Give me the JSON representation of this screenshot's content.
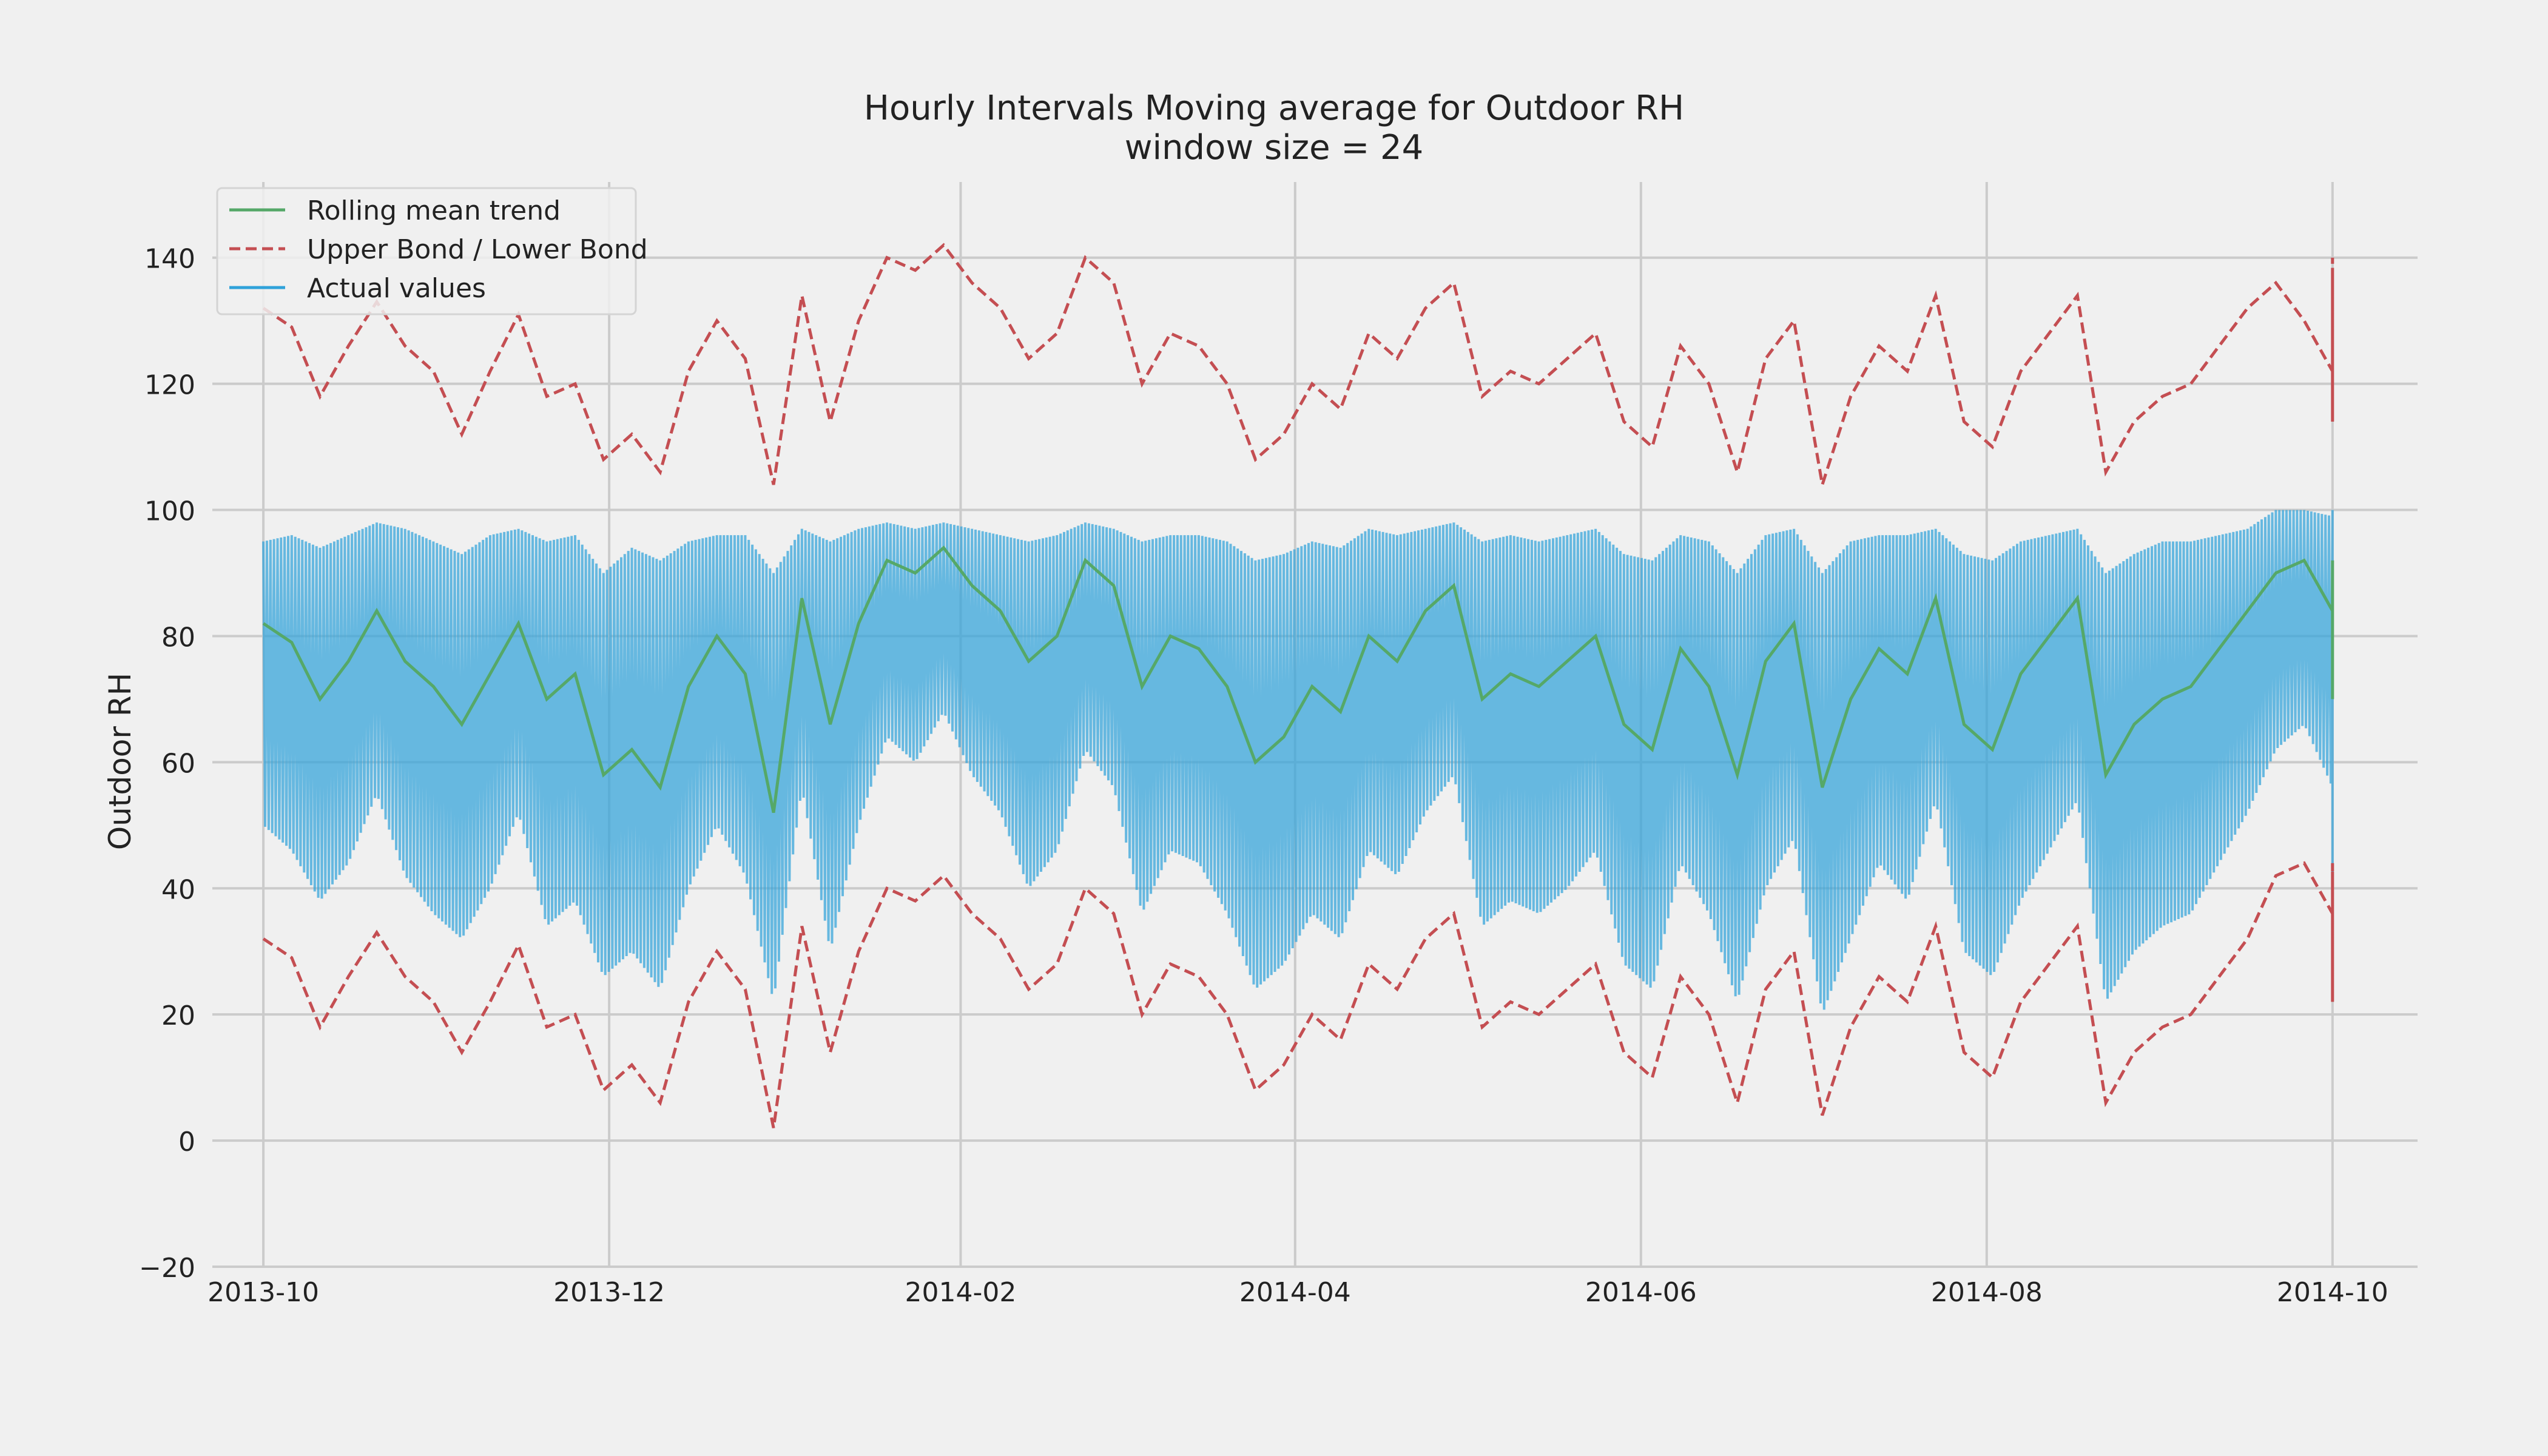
{
  "chart_data": {
    "type": "line",
    "title": "Hourly Intervals Moving average for Outdoor RH",
    "subtitle": "window size = 24",
    "ylabel": "Outdoor RH",
    "xlabel": "",
    "ylim": [
      -20,
      152
    ],
    "xlim": [
      "2013-09-22",
      "2014-10-16"
    ],
    "grid": true,
    "legend_position": "top-left",
    "x_ticks": [
      "2013-10",
      "2013-12",
      "2014-02",
      "2014-04",
      "2014-06",
      "2014-08",
      "2014-10"
    ],
    "y_ticks": [
      -20,
      0,
      20,
      40,
      60,
      80,
      100,
      120,
      140
    ],
    "x_start": "2013-10-01",
    "x_step_days": 5,
    "x_end": "2014-10-01",
    "series": [
      {
        "name": "Rolling mean trend",
        "color": "#55a868",
        "style": "solid",
        "values": [
          82,
          79,
          70,
          76,
          84,
          76,
          72,
          66,
          74,
          82,
          70,
          74,
          58,
          62,
          56,
          72,
          80,
          74,
          52,
          86,
          66,
          82,
          92,
          90,
          94,
          88,
          84,
          76,
          80,
          92,
          88,
          72,
          80,
          78,
          72,
          60,
          64,
          72,
          68,
          80,
          76,
          84,
          88,
          70,
          74,
          72,
          76,
          80,
          66,
          62,
          78,
          72,
          58,
          76,
          82,
          56,
          70,
          78,
          74,
          86,
          66,
          62,
          74,
          80,
          86,
          58,
          66,
          70,
          72,
          78,
          84,
          90,
          92,
          84,
          86,
          88,
          84,
          80,
          76,
          78,
          82,
          86,
          80,
          92,
          84,
          84,
          86,
          78,
          88,
          90,
          80,
          82,
          84,
          86,
          80,
          80,
          86,
          76,
          72,
          84,
          80,
          82,
          84,
          88,
          80,
          82,
          76,
          82,
          88,
          72,
          80,
          88,
          86,
          88,
          84,
          84,
          82,
          76,
          76,
          82,
          84,
          78,
          70,
          82,
          88,
          80,
          86,
          84,
          82,
          82,
          86,
          80,
          86,
          74,
          82,
          80,
          82,
          78,
          82,
          86,
          84,
          86,
          86,
          76,
          80,
          78,
          82,
          80,
          72,
          84,
          88,
          84,
          74
        ]
      },
      {
        "name": "Upper Bond / Lower Bond",
        "color": "#c44e52",
        "style": "dashed",
        "upper": [
          132,
          129,
          118,
          126,
          133,
          126,
          122,
          112,
          122,
          131,
          118,
          120,
          108,
          112,
          106,
          122,
          130,
          124,
          104,
          134,
          114,
          130,
          140,
          138,
          142,
          136,
          132,
          124,
          128,
          140,
          136,
          120,
          128,
          126,
          120,
          108,
          112,
          120,
          116,
          128,
          124,
          132,
          136,
          118,
          122,
          120,
          124,
          128,
          114,
          110,
          126,
          120,
          106,
          124,
          130,
          104,
          118,
          126,
          122,
          134,
          114,
          110,
          122,
          128,
          134,
          106,
          114,
          118,
          120,
          126,
          132,
          136,
          130,
          122,
          124,
          126,
          122,
          118,
          114,
          116,
          120,
          124,
          118,
          140,
          132,
          132,
          134,
          126,
          136,
          138,
          128,
          130,
          132,
          134,
          128,
          128,
          134,
          124,
          120,
          132,
          128,
          130,
          132,
          136,
          128,
          130,
          124,
          130,
          136,
          120,
          128,
          136,
          134,
          136,
          132,
          132,
          130,
          124,
          124,
          130,
          132,
          126,
          118,
          130,
          136,
          128,
          134,
          132,
          130,
          130,
          134,
          128,
          134,
          122,
          130,
          128,
          130,
          126,
          130,
          134,
          132,
          134,
          134,
          124,
          128,
          126,
          130,
          128,
          120,
          132,
          136,
          132,
          122
        ],
        "lower": [
          32,
          29,
          18,
          26,
          33,
          26,
          22,
          14,
          22,
          31,
          18,
          20,
          8,
          12,
          6,
          22,
          30,
          24,
          2,
          34,
          14,
          30,
          40,
          38,
          42,
          36,
          32,
          24,
          28,
          40,
          36,
          20,
          28,
          26,
          20,
          8,
          12,
          20,
          16,
          28,
          24,
          32,
          36,
          18,
          22,
          20,
          24,
          28,
          14,
          10,
          26,
          20,
          6,
          24,
          30,
          4,
          18,
          26,
          22,
          34,
          14,
          10,
          22,
          28,
          34,
          6,
          14,
          18,
          20,
          26,
          32,
          42,
          44,
          36,
          38,
          40,
          36,
          32,
          28,
          30,
          34,
          38,
          32,
          44,
          36,
          36,
          38,
          30,
          40,
          42,
          32,
          34,
          36,
          38,
          32,
          32,
          38,
          28,
          24,
          36,
          32,
          34,
          36,
          40,
          32,
          34,
          28,
          34,
          40,
          24,
          32,
          40,
          38,
          40,
          36,
          36,
          34,
          28,
          28,
          34,
          36,
          30,
          22,
          34,
          40,
          32,
          38,
          36,
          34,
          34,
          38,
          32,
          38,
          26,
          34,
          32,
          34,
          30,
          34,
          38,
          36,
          38,
          38,
          28,
          32,
          30,
          34,
          32,
          24,
          36,
          40,
          36,
          26
        ]
      },
      {
        "name": "Actual values",
        "color": "#30a2da",
        "style": "solid",
        "max": [
          95,
          96,
          94,
          96,
          98,
          97,
          95,
          93,
          96,
          97,
          95,
          96,
          90,
          94,
          92,
          95,
          96,
          96,
          90,
          97,
          95,
          97,
          98,
          97,
          98,
          97,
          96,
          95,
          96,
          98,
          97,
          95,
          96,
          96,
          95,
          92,
          93,
          95,
          94,
          97,
          96,
          97,
          98,
          95,
          96,
          95,
          96,
          97,
          93,
          92,
          96,
          95,
          90,
          96,
          97,
          90,
          95,
          96,
          96,
          97,
          93,
          92,
          95,
          96,
          97,
          90,
          93,
          95,
          95,
          96,
          97,
          100,
          100,
          99,
          99,
          100,
          99,
          99,
          98,
          98,
          99,
          100,
          99,
          100,
          99,
          99,
          100,
          98,
          100,
          100,
          99,
          99,
          99,
          100,
          99,
          99,
          100,
          98,
          97,
          99,
          99,
          99,
          99,
          100,
          99,
          99,
          98,
          99,
          100,
          97,
          99,
          100,
          100,
          100,
          99,
          99,
          99,
          98,
          98,
          99,
          99,
          98,
          96,
          99,
          100,
          99,
          100,
          99,
          99,
          99,
          100,
          99,
          100,
          97,
          99,
          99,
          99,
          98,
          99,
          100,
          99,
          100,
          100,
          98,
          99,
          98,
          99,
          99,
          96,
          99,
          100,
          99,
          97
        ],
        "min": [
          50,
          46,
          38,
          44,
          55,
          42,
          36,
          32,
          40,
          52,
          34,
          38,
          26,
          30,
          24,
          40,
          50,
          42,
          22,
          56,
          30,
          50,
          64,
          60,
          68,
          58,
          52,
          40,
          46,
          62,
          56,
          36,
          46,
          44,
          36,
          24,
          28,
          36,
          32,
          46,
          42,
          52,
          58,
          34,
          38,
          36,
          40,
          46,
          28,
          24,
          44,
          36,
          22,
          40,
          48,
          20,
          32,
          44,
          38,
          54,
          30,
          26,
          38,
          46,
          54,
          22,
          30,
          34,
          36,
          44,
          52,
          62,
          66,
          56,
          58,
          60,
          56,
          50,
          44,
          46,
          52,
          58,
          50,
          66,
          56,
          56,
          58,
          46,
          60,
          62,
          50,
          52,
          56,
          58,
          50,
          50,
          58,
          44,
          38,
          56,
          50,
          52,
          56,
          60,
          50,
          52,
          44,
          52,
          60,
          38,
          50,
          60,
          58,
          60,
          56,
          56,
          52,
          44,
          44,
          52,
          56,
          46,
          36,
          52,
          60,
          50,
          58,
          56,
          52,
          52,
          58,
          50,
          58,
          42,
          52,
          50,
          52,
          46,
          52,
          58,
          56,
          58,
          58,
          44,
          50,
          46,
          52,
          50,
          38,
          56,
          60,
          56,
          42
        ]
      }
    ]
  }
}
